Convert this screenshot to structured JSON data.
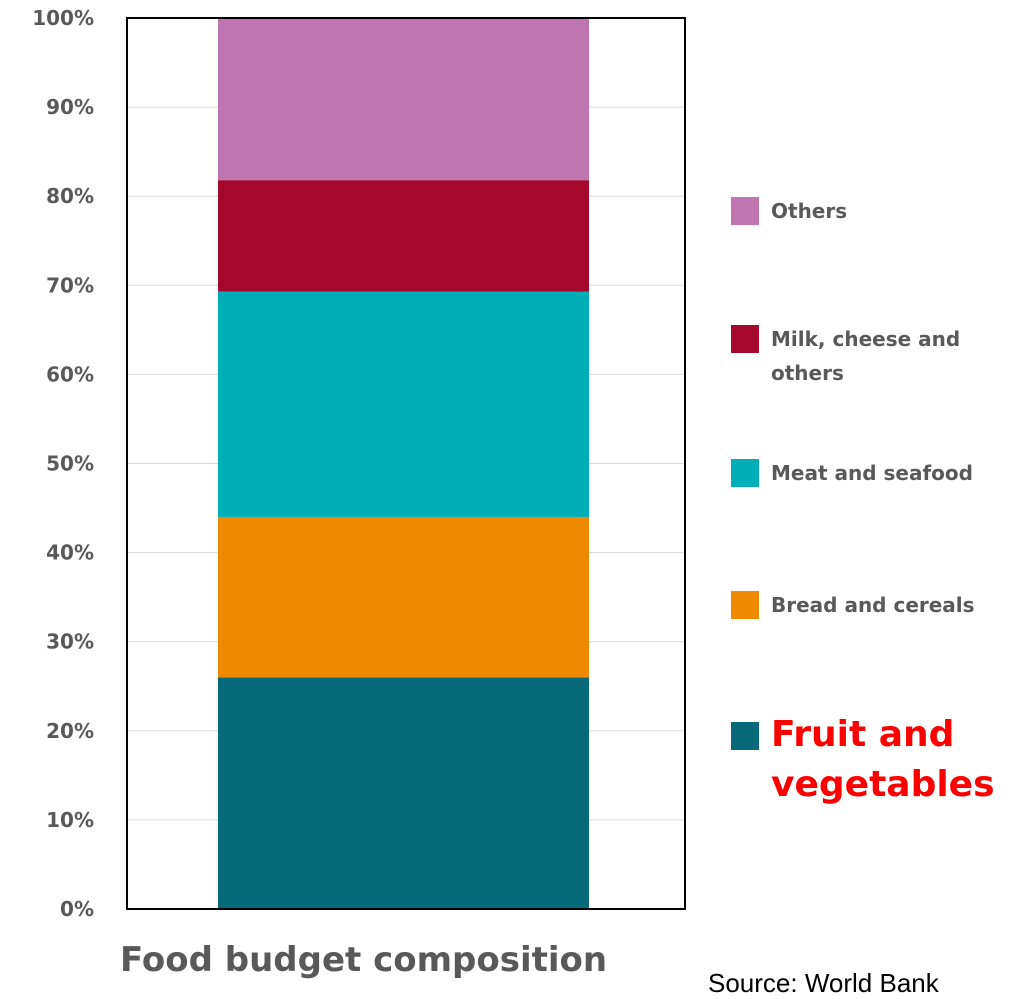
{
  "chart_data": {
    "type": "bar",
    "stacked": true,
    "categories": [
      ""
    ],
    "series": [
      {
        "name": "Fruit and vegetables",
        "values": [
          26
        ],
        "color": "#066a7a"
      },
      {
        "name": "Bread and cereals",
        "values": [
          18
        ],
        "color": "#ef8a00"
      },
      {
        "name": "Meat and seafood",
        "values": [
          25.3
        ],
        "color": "#00aeb8"
      },
      {
        "name": "Milk, cheese and others",
        "values": [
          12.5
        ],
        "color": "#a4082c"
      },
      {
        "name": "Others",
        "values": [
          18.2
        ],
        "color": "#bf76b0"
      }
    ],
    "title": "",
    "xlabel": "Food budget composition",
    "ylabel": "",
    "ylim": [
      0,
      100
    ],
    "yticks": [
      "0%",
      "10%",
      "20%",
      "30%",
      "40%",
      "50%",
      "60%",
      "70%",
      "80%",
      "90%",
      "100%"
    ],
    "grid": true,
    "legend_position": "right",
    "highlight": {
      "series": "Fruit and vegetables",
      "color": "#ff0000"
    }
  },
  "legend": {
    "others": "Others",
    "milk": "Milk, cheese and others",
    "meat": "Meat and seafood",
    "bread": "Bread and cereals",
    "fruit": "Fruit and vegetables"
  },
  "x_title": "Food budget composition",
  "source_note": "Source: World Bank"
}
